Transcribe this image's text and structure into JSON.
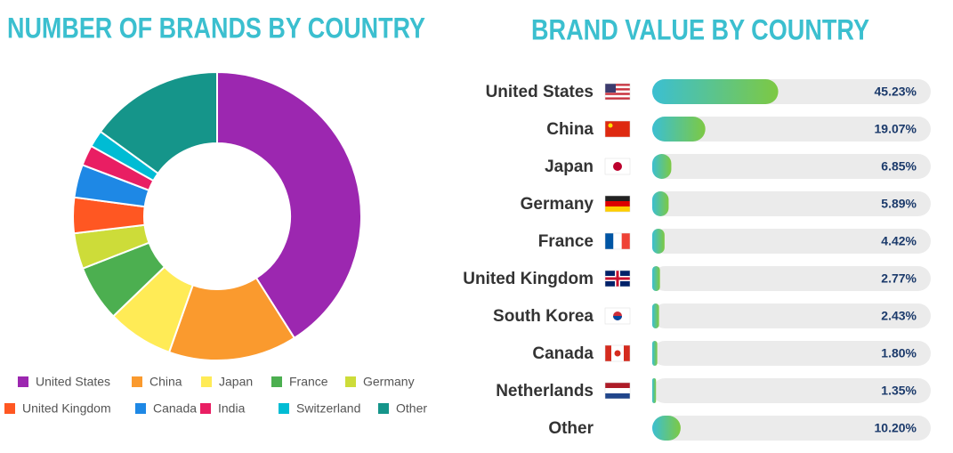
{
  "chart_data": [
    {
      "type": "donut",
      "title": "NUMBER OF BRANDS BY COUNTRY",
      "categories": [
        "United States",
        "China",
        "Japan",
        "France",
        "Germany",
        "United Kingdom",
        "Canada",
        "India",
        "Switzerland",
        "Other"
      ],
      "values": [
        41,
        14.4,
        7.4,
        6.3,
        4,
        4,
        3.7,
        2.3,
        1.9,
        15
      ],
      "colors": [
        "#9c27b0",
        "#fa9a2e",
        "#ffeb56",
        "#4caf50",
        "#cddc39",
        "#ff5722",
        "#1e88e5",
        "#e91e63",
        "#00bcd4",
        "#15958a"
      ]
    },
    {
      "type": "bar",
      "orientation": "horizontal",
      "title": "BRAND VALUE BY COUNTRY",
      "categories": [
        "United States",
        "China",
        "Japan",
        "Germany",
        "France",
        "United Kingdom",
        "South Korea",
        "Canada",
        "Netherlands",
        "Other"
      ],
      "values": [
        45.23,
        19.07,
        6.85,
        5.89,
        4.42,
        2.77,
        2.43,
        1.8,
        1.35,
        10.2
      ],
      "value_labels": [
        "45.23%",
        "19.07%",
        "6.85%",
        "5.89%",
        "4.42%",
        "2.77%",
        "2.43%",
        "1.80%",
        "1.35%",
        "10.20%"
      ],
      "xlim": [
        0,
        100
      ],
      "colors": [
        "#3bbfd2",
        "#7dc943"
      ]
    }
  ]
}
